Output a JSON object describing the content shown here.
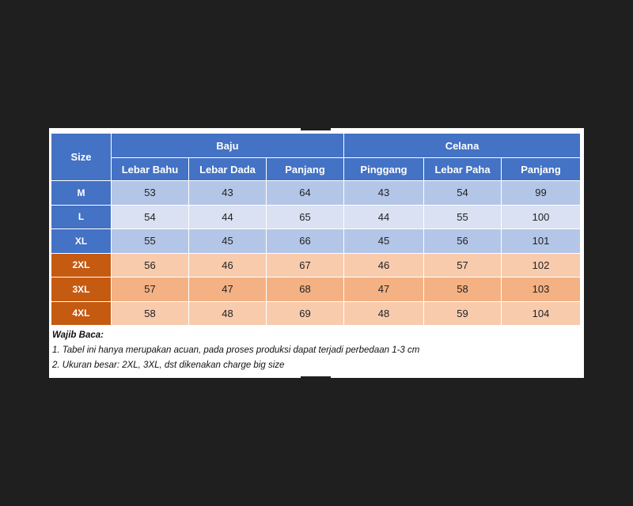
{
  "table": {
    "size_header": "Size",
    "groups": [
      "Baju",
      "Celana"
    ],
    "columns": [
      "Lebar Bahu",
      "Lebar Dada",
      "Panjang",
      "Pinggang",
      "Lebar Paha",
      "Panjang"
    ],
    "rows": [
      {
        "size": "M",
        "values": [
          "53",
          "43",
          "64",
          "43",
          "54",
          "99"
        ]
      },
      {
        "size": "L",
        "values": [
          "54",
          "44",
          "65",
          "44",
          "55",
          "100"
        ]
      },
      {
        "size": "XL",
        "values": [
          "55",
          "45",
          "66",
          "45",
          "56",
          "101"
        ]
      },
      {
        "size": "2XL",
        "values": [
          "56",
          "46",
          "67",
          "46",
          "57",
          "102"
        ]
      },
      {
        "size": "3XL",
        "values": [
          "57",
          "47",
          "68",
          "47",
          "58",
          "103"
        ]
      },
      {
        "size": "4XL",
        "values": [
          "58",
          "48",
          "69",
          "48",
          "59",
          "104"
        ]
      }
    ]
  },
  "notes": {
    "title": "Wajib Baca:",
    "lines": [
      "1. Tabel ini hanya merupakan acuan, pada proses produksi dapat terjadi perbedaan 1-3 cm",
      "2. Ukuran besar: 2XL, 3XL, dst dikenakan charge big size"
    ]
  },
  "colors": {
    "header_blue": "#4472c4",
    "size_orange": "#c55a11",
    "row_blue_light": "#b4c6e7",
    "row_blue_lighter": "#d9e1f2",
    "row_orange_light": "#f8cbad",
    "row_orange_mid": "#f4b183",
    "background": "#1f1f1f"
  }
}
